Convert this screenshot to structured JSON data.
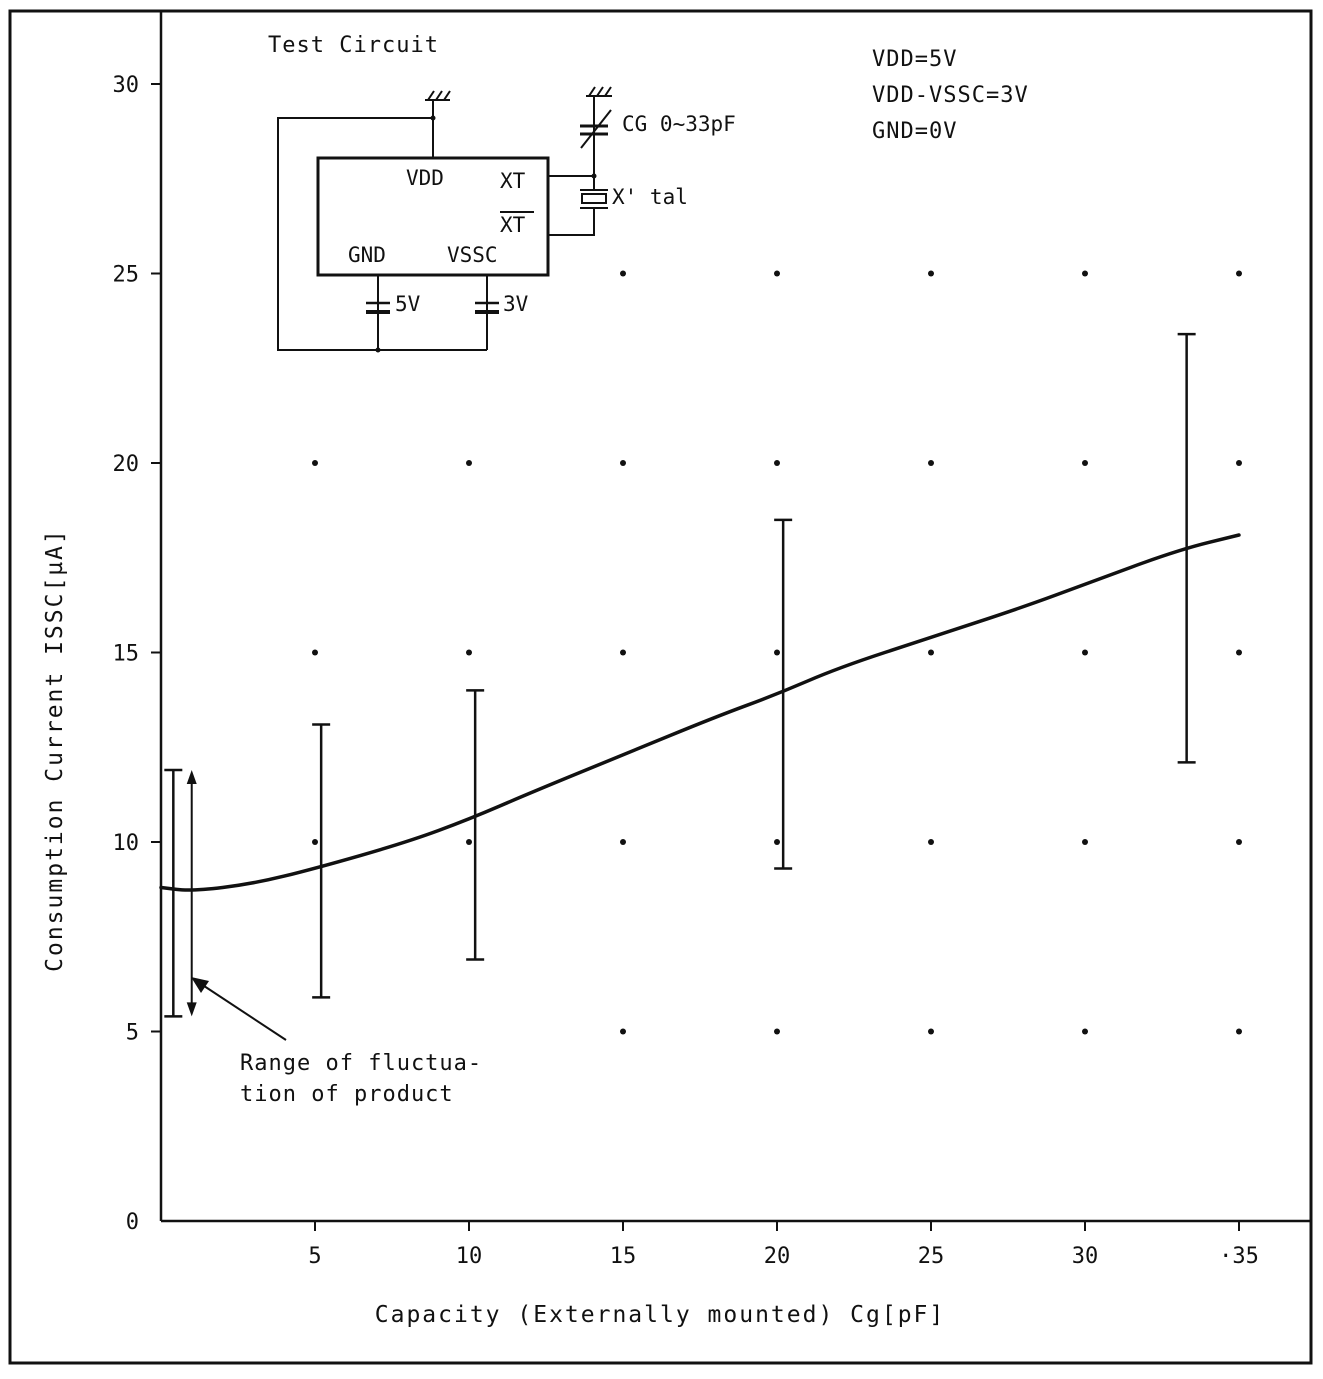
{
  "chart_data": {
    "type": "line",
    "xlabel": "Capacity (Externally mounted)  Cg[pF]",
    "ylabel": "Consumption Current  ISSC[µA]",
    "xlim": [
      0,
      37
    ],
    "ylim": [
      0,
      32
    ],
    "x_ticks": [
      "5",
      "10",
      "15",
      "20",
      "25",
      "30",
      "·35"
    ],
    "x_tick_values": [
      5,
      10,
      15,
      20,
      25,
      30,
      35
    ],
    "y_ticks": [
      "0",
      "5",
      "10",
      "15",
      "20",
      "25",
      "30"
    ],
    "y_tick_values": [
      0,
      5,
      10,
      15,
      20,
      25,
      30
    ],
    "grid": "dots",
    "grid_x": [
      5,
      10,
      15,
      20,
      25,
      30,
      35
    ],
    "grid_y": [
      5,
      10,
      15,
      20,
      25
    ],
    "series": [
      {
        "x": [
          0,
          1,
          3,
          5,
          8,
          10,
          12,
          15,
          18,
          20,
          22,
          25,
          28,
          30,
          33,
          35
        ],
        "y": [
          8.8,
          8.7,
          8.9,
          9.3,
          10.0,
          10.6,
          11.3,
          12.3,
          13.3,
          13.9,
          14.6,
          15.4,
          16.2,
          16.8,
          17.7,
          18.1
        ]
      }
    ],
    "error_bars": [
      {
        "x": 0.4,
        "low": 5.4,
        "high": 11.9
      },
      {
        "x": 5.2,
        "low": 5.9,
        "high": 13.1
      },
      {
        "x": 10.2,
        "low": 6.9,
        "high": 14.0
      },
      {
        "x": 20.2,
        "low": 9.3,
        "high": 18.5
      },
      {
        "x": 33.3,
        "low": 12.1,
        "high": 23.4
      }
    ],
    "fluctuation_arrow": {
      "x": 0.9,
      "low": 5.4,
      "high": 11.9
    },
    "annotation": {
      "lines": [
        "Range of fluctua-",
        "tion of product"
      ],
      "arrow_target": {
        "x": 1.5,
        "y": 6.4
      }
    },
    "conditions": [
      "VDD=5V",
      "VDD-VSSC=3V",
      "GND=0V"
    ]
  },
  "test_circuit": {
    "title": "Test Circuit",
    "pins": {
      "vdd": "VDD",
      "xt": "XT",
      "xt_bar": "XT",
      "gnd": "GND",
      "vssc": "VSSC"
    },
    "cg_label": "CG 0~33pF",
    "xtal_label": "X' tal",
    "battery_5v": "5V",
    "battery_3v": "3V"
  }
}
